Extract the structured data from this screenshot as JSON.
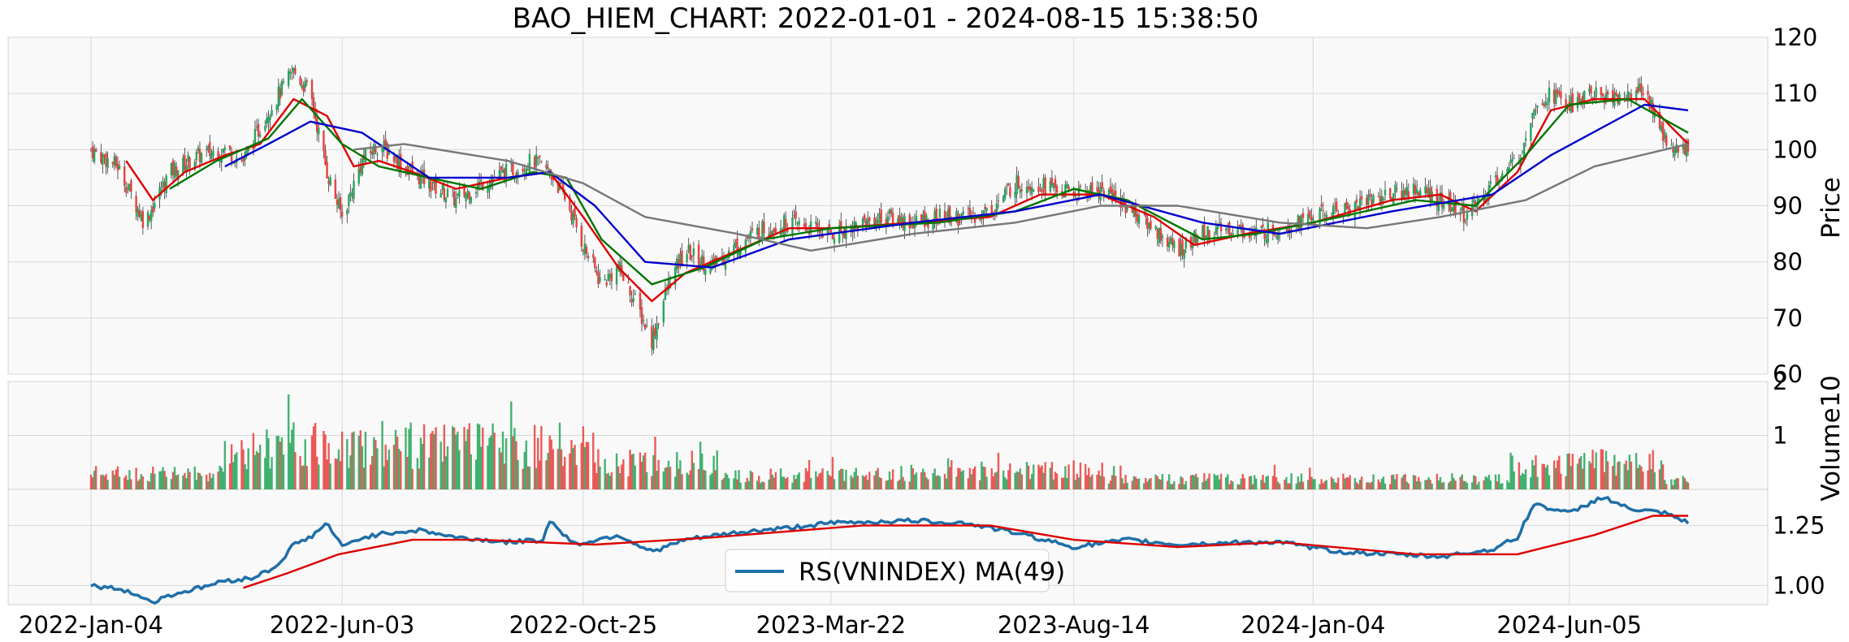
{
  "chart_data": {
    "type": "candlestick",
    "title": "BAO_HIEM_CHART: 2022-01-01 - 2024-08-15 15:38:50",
    "x_tick_labels": [
      "2022-Jan-04",
      "2022-Jun-03",
      "2022-Oct-25",
      "2023-Mar-22",
      "2023-Aug-14",
      "2024-Jan-04",
      "2024-Jun-05"
    ],
    "x_tick_dates": [
      "2022-01-04",
      "2022-06-03",
      "2022-10-25",
      "2023-03-22",
      "2023-08-14",
      "2024-01-04",
      "2024-06-05"
    ],
    "x_range": [
      "2022-01-04",
      "2024-08-15"
    ],
    "grid": true,
    "panels": {
      "price": {
        "ylabel": "Price",
        "ylim": [
          60,
          120
        ],
        "yticks": [
          60,
          70,
          80,
          90,
          100,
          110,
          120
        ],
        "close_series": [
          [
            "2022-01-04",
            100
          ],
          [
            "2022-01-20",
            97
          ],
          [
            "2022-02-05",
            87
          ],
          [
            "2022-02-20",
            96
          ],
          [
            "2022-03-10",
            99
          ],
          [
            "2022-03-25",
            100
          ],
          [
            "2022-04-05",
            98
          ],
          [
            "2022-04-20",
            107
          ],
          [
            "2022-05-05",
            114
          ],
          [
            "2022-05-15",
            110
          ],
          [
            "2022-05-25",
            96
          ],
          [
            "2022-06-03",
            88
          ],
          [
            "2022-06-15",
            98
          ],
          [
            "2022-06-25",
            101
          ],
          [
            "2022-07-10",
            97
          ],
          [
            "2022-07-25",
            94
          ],
          [
            "2022-08-10",
            91
          ],
          [
            "2022-08-25",
            94
          ],
          [
            "2022-09-10",
            96
          ],
          [
            "2022-09-25",
            98
          ],
          [
            "2022-10-05",
            96
          ],
          [
            "2022-10-15",
            91
          ],
          [
            "2022-10-25",
            83
          ],
          [
            "2022-11-05",
            76
          ],
          [
            "2022-11-15",
            79
          ],
          [
            "2022-11-25",
            73
          ],
          [
            "2022-12-05",
            66
          ],
          [
            "2022-12-15",
            76
          ],
          [
            "2022-12-25",
            82
          ],
          [
            "2023-01-10",
            79
          ],
          [
            "2023-01-25",
            83
          ],
          [
            "2023-02-10",
            86
          ],
          [
            "2023-02-25",
            87
          ],
          [
            "2023-03-10",
            86
          ],
          [
            "2023-03-22",
            85
          ],
          [
            "2023-04-10",
            87
          ],
          [
            "2023-04-25",
            88
          ],
          [
            "2023-05-10",
            87
          ],
          [
            "2023-05-25",
            88
          ],
          [
            "2023-06-10",
            88
          ],
          [
            "2023-06-25",
            89
          ],
          [
            "2023-07-10",
            94
          ],
          [
            "2023-07-25",
            94
          ],
          [
            "2023-08-14",
            92
          ],
          [
            "2023-08-30",
            93
          ],
          [
            "2023-09-15",
            90
          ],
          [
            "2023-10-01",
            86
          ],
          [
            "2023-10-15",
            82
          ],
          [
            "2023-10-30",
            85
          ],
          [
            "2023-11-15",
            86
          ],
          [
            "2023-12-01",
            85
          ],
          [
            "2023-12-15",
            86
          ],
          [
            "2024-01-04",
            88
          ],
          [
            "2024-01-20",
            89
          ],
          [
            "2024-02-05",
            91
          ],
          [
            "2024-02-20",
            92
          ],
          [
            "2024-03-05",
            93
          ],
          [
            "2024-03-20",
            91
          ],
          [
            "2024-04-05",
            88
          ],
          [
            "2024-04-20",
            94
          ],
          [
            "2024-05-05",
            98
          ],
          [
            "2024-05-15",
            108
          ],
          [
            "2024-05-25",
            110
          ],
          [
            "2024-06-05",
            108
          ],
          [
            "2024-06-20",
            110
          ],
          [
            "2024-07-05",
            109
          ],
          [
            "2024-07-20",
            111
          ],
          [
            "2024-08-01",
            102
          ],
          [
            "2024-08-10",
            99
          ],
          [
            "2024-08-15",
            101
          ]
        ],
        "ma_lines": [
          {
            "color": "#dd0000",
            "values": [
              [
                "2022-01-25",
                98
              ],
              [
                "2022-02-10",
                91
              ],
              [
                "2022-03-01",
                96
              ],
              [
                "2022-03-25",
                99
              ],
              [
                "2022-04-15",
                101
              ],
              [
                "2022-05-05",
                109
              ],
              [
                "2022-05-25",
                106
              ],
              [
                "2022-06-10",
                97
              ],
              [
                "2022-06-25",
                98
              ],
              [
                "2022-07-15",
                96
              ],
              [
                "2022-08-10",
                93
              ],
              [
                "2022-09-10",
                95
              ],
              [
                "2022-10-05",
                96
              ],
              [
                "2022-10-25",
                88
              ],
              [
                "2022-11-15",
                79
              ],
              [
                "2022-12-05",
                73
              ],
              [
                "2022-12-25",
                78
              ],
              [
                "2023-01-25",
                82
              ],
              [
                "2023-02-25",
                86
              ],
              [
                "2023-03-22",
                86
              ],
              [
                "2023-05-10",
                87
              ],
              [
                "2023-06-25",
                88
              ],
              [
                "2023-07-25",
                92
              ],
              [
                "2023-08-30",
                92
              ],
              [
                "2023-10-01",
                88
              ],
              [
                "2023-10-25",
                83
              ],
              [
                "2023-11-25",
                85
              ],
              [
                "2024-01-04",
                87
              ],
              [
                "2024-02-20",
                91
              ],
              [
                "2024-03-20",
                92
              ],
              [
                "2024-04-10",
                89
              ],
              [
                "2024-05-05",
                96
              ],
              [
                "2024-05-25",
                107
              ],
              [
                "2024-06-20",
                109
              ],
              [
                "2024-07-20",
                109
              ],
              [
                "2024-08-05",
                104
              ],
              [
                "2024-08-15",
                101
              ]
            ]
          },
          {
            "color": "#007700",
            "values": [
              [
                "2022-02-20",
                93
              ],
              [
                "2022-03-20",
                98
              ],
              [
                "2022-04-20",
                102
              ],
              [
                "2022-05-10",
                109
              ],
              [
                "2022-06-03",
                101
              ],
              [
                "2022-06-25",
                97
              ],
              [
                "2022-07-25",
                95
              ],
              [
                "2022-08-25",
                93
              ],
              [
                "2022-09-25",
                96
              ],
              [
                "2022-10-15",
                95
              ],
              [
                "2022-11-05",
                84
              ],
              [
                "2022-12-05",
                76
              ],
              [
                "2023-01-05",
                79
              ],
              [
                "2023-02-10",
                84
              ],
              [
                "2023-03-22",
                86
              ],
              [
                "2023-05-25",
                87
              ],
              [
                "2023-07-10",
                89
              ],
              [
                "2023-08-14",
                93
              ],
              [
                "2023-09-15",
                91
              ],
              [
                "2023-10-30",
                84
              ],
              [
                "2023-12-01",
                85
              ],
              [
                "2024-01-20",
                88
              ],
              [
                "2024-03-05",
                91
              ],
              [
                "2024-04-10",
                90
              ],
              [
                "2024-05-10",
                99
              ],
              [
                "2024-06-05",
                108
              ],
              [
                "2024-07-10",
                109
              ],
              [
                "2024-08-15",
                103
              ]
            ]
          },
          {
            "color": "#0000cc",
            "values": [
              [
                "2022-03-25",
                97
              ],
              [
                "2022-04-20",
                101
              ],
              [
                "2022-05-15",
                105
              ],
              [
                "2022-06-15",
                103
              ],
              [
                "2022-07-25",
                95
              ],
              [
                "2022-09-10",
                95
              ],
              [
                "2022-10-05",
                96
              ],
              [
                "2022-11-01",
                90
              ],
              [
                "2022-12-01",
                80
              ],
              [
                "2023-01-10",
                79
              ],
              [
                "2023-02-25",
                84
              ],
              [
                "2023-05-10",
                87
              ],
              [
                "2023-07-10",
                89
              ],
              [
                "2023-08-30",
                92
              ],
              [
                "2023-10-30",
                87
              ],
              [
                "2023-12-15",
                85
              ],
              [
                "2024-02-20",
                89
              ],
              [
                "2024-04-20",
                92
              ],
              [
                "2024-05-25",
                99
              ],
              [
                "2024-07-20",
                108
              ],
              [
                "2024-08-15",
                107
              ]
            ]
          },
          {
            "color": "#777777",
            "values": [
              [
                "2022-06-10",
                100
              ],
              [
                "2022-07-10",
                101
              ],
              [
                "2022-09-10",
                98
              ],
              [
                "2022-10-25",
                94
              ],
              [
                "2022-12-01",
                88
              ],
              [
                "2023-01-25",
                85
              ],
              [
                "2023-03-10",
                82
              ],
              [
                "2023-05-10",
                85
              ],
              [
                "2023-07-10",
                87
              ],
              [
                "2023-08-30",
                90
              ],
              [
                "2023-10-15",
                90
              ],
              [
                "2023-12-15",
                87
              ],
              [
                "2024-02-05",
                86
              ],
              [
                "2024-03-20",
                88
              ],
              [
                "2024-05-10",
                91
              ],
              [
                "2024-06-20",
                97
              ],
              [
                "2024-08-15",
                101
              ]
            ]
          }
        ]
      },
      "volume": {
        "ylabel": "Volume",
        "exponent_label": "10",
        "yticks": [
          1,
          2
        ],
        "ylim": [
          0,
          2
        ]
      },
      "rs": {
        "yticks": [
          1.0,
          1.25
        ],
        "ylim": [
          0.92,
          1.4
        ],
        "legend": "RS(VNINDEX) MA(49)",
        "legend_placement": "bottom-center",
        "rs_series": [
          [
            "2022-01-04",
            1.0
          ],
          [
            "2022-01-25",
            0.98
          ],
          [
            "2022-02-10",
            0.93
          ],
          [
            "2022-02-20",
            0.96
          ],
          [
            "2022-03-10",
            0.99
          ],
          [
            "2022-03-25",
            1.02
          ],
          [
            "2022-04-10",
            1.03
          ],
          [
            "2022-04-25",
            1.08
          ],
          [
            "2022-05-05",
            1.17
          ],
          [
            "2022-05-15",
            1.2
          ],
          [
            "2022-05-25",
            1.26
          ],
          [
            "2022-06-03",
            1.16
          ],
          [
            "2022-06-15",
            1.2
          ],
          [
            "2022-07-01",
            1.22
          ],
          [
            "2022-07-20",
            1.23
          ],
          [
            "2022-08-10",
            1.2
          ],
          [
            "2022-09-10",
            1.18
          ],
          [
            "2022-10-01",
            1.19
          ],
          [
            "2022-10-05",
            1.27
          ],
          [
            "2022-10-20",
            1.17
          ],
          [
            "2022-11-15",
            1.21
          ],
          [
            "2022-12-05",
            1.14
          ],
          [
            "2022-12-25",
            1.19
          ],
          [
            "2023-01-25",
            1.22
          ],
          [
            "2023-02-25",
            1.24
          ],
          [
            "2023-03-22",
            1.26
          ],
          [
            "2023-05-10",
            1.27
          ],
          [
            "2023-06-10",
            1.26
          ],
          [
            "2023-07-10",
            1.22
          ],
          [
            "2023-08-14",
            1.16
          ],
          [
            "2023-09-15",
            1.19
          ],
          [
            "2023-10-15",
            1.17
          ],
          [
            "2023-11-25",
            1.18
          ],
          [
            "2023-12-15",
            1.18
          ],
          [
            "2024-01-20",
            1.14
          ],
          [
            "2024-02-20",
            1.13
          ],
          [
            "2024-03-20",
            1.12
          ],
          [
            "2024-04-20",
            1.15
          ],
          [
            "2024-05-05",
            1.2
          ],
          [
            "2024-05-15",
            1.34
          ],
          [
            "2024-06-05",
            1.3
          ],
          [
            "2024-06-25",
            1.37
          ],
          [
            "2024-07-10",
            1.32
          ],
          [
            "2024-08-01",
            1.3
          ],
          [
            "2024-08-15",
            1.26
          ]
        ],
        "ma_series": [
          [
            "2022-04-05",
            0.99
          ],
          [
            "2022-05-01",
            1.05
          ],
          [
            "2022-06-01",
            1.13
          ],
          [
            "2022-07-15",
            1.19
          ],
          [
            "2022-08-25",
            1.19
          ],
          [
            "2022-11-01",
            1.17
          ],
          [
            "2023-01-10",
            1.2
          ],
          [
            "2023-04-10",
            1.25
          ],
          [
            "2023-06-25",
            1.25
          ],
          [
            "2023-08-14",
            1.19
          ],
          [
            "2023-10-15",
            1.16
          ],
          [
            "2023-12-15",
            1.18
          ],
          [
            "2024-03-05",
            1.13
          ],
          [
            "2024-05-05",
            1.13
          ],
          [
            "2024-06-20",
            1.21
          ],
          [
            "2024-07-25",
            1.29
          ],
          [
            "2024-08-15",
            1.29
          ]
        ]
      }
    },
    "colors": {
      "up": "#26a65b",
      "down": "#e8413e",
      "rs_line": "#1f6fa8",
      "rs_ma_line": "#dd0000",
      "panel_bg": "#f9f9f9",
      "grid": "#d8d8d8"
    }
  }
}
